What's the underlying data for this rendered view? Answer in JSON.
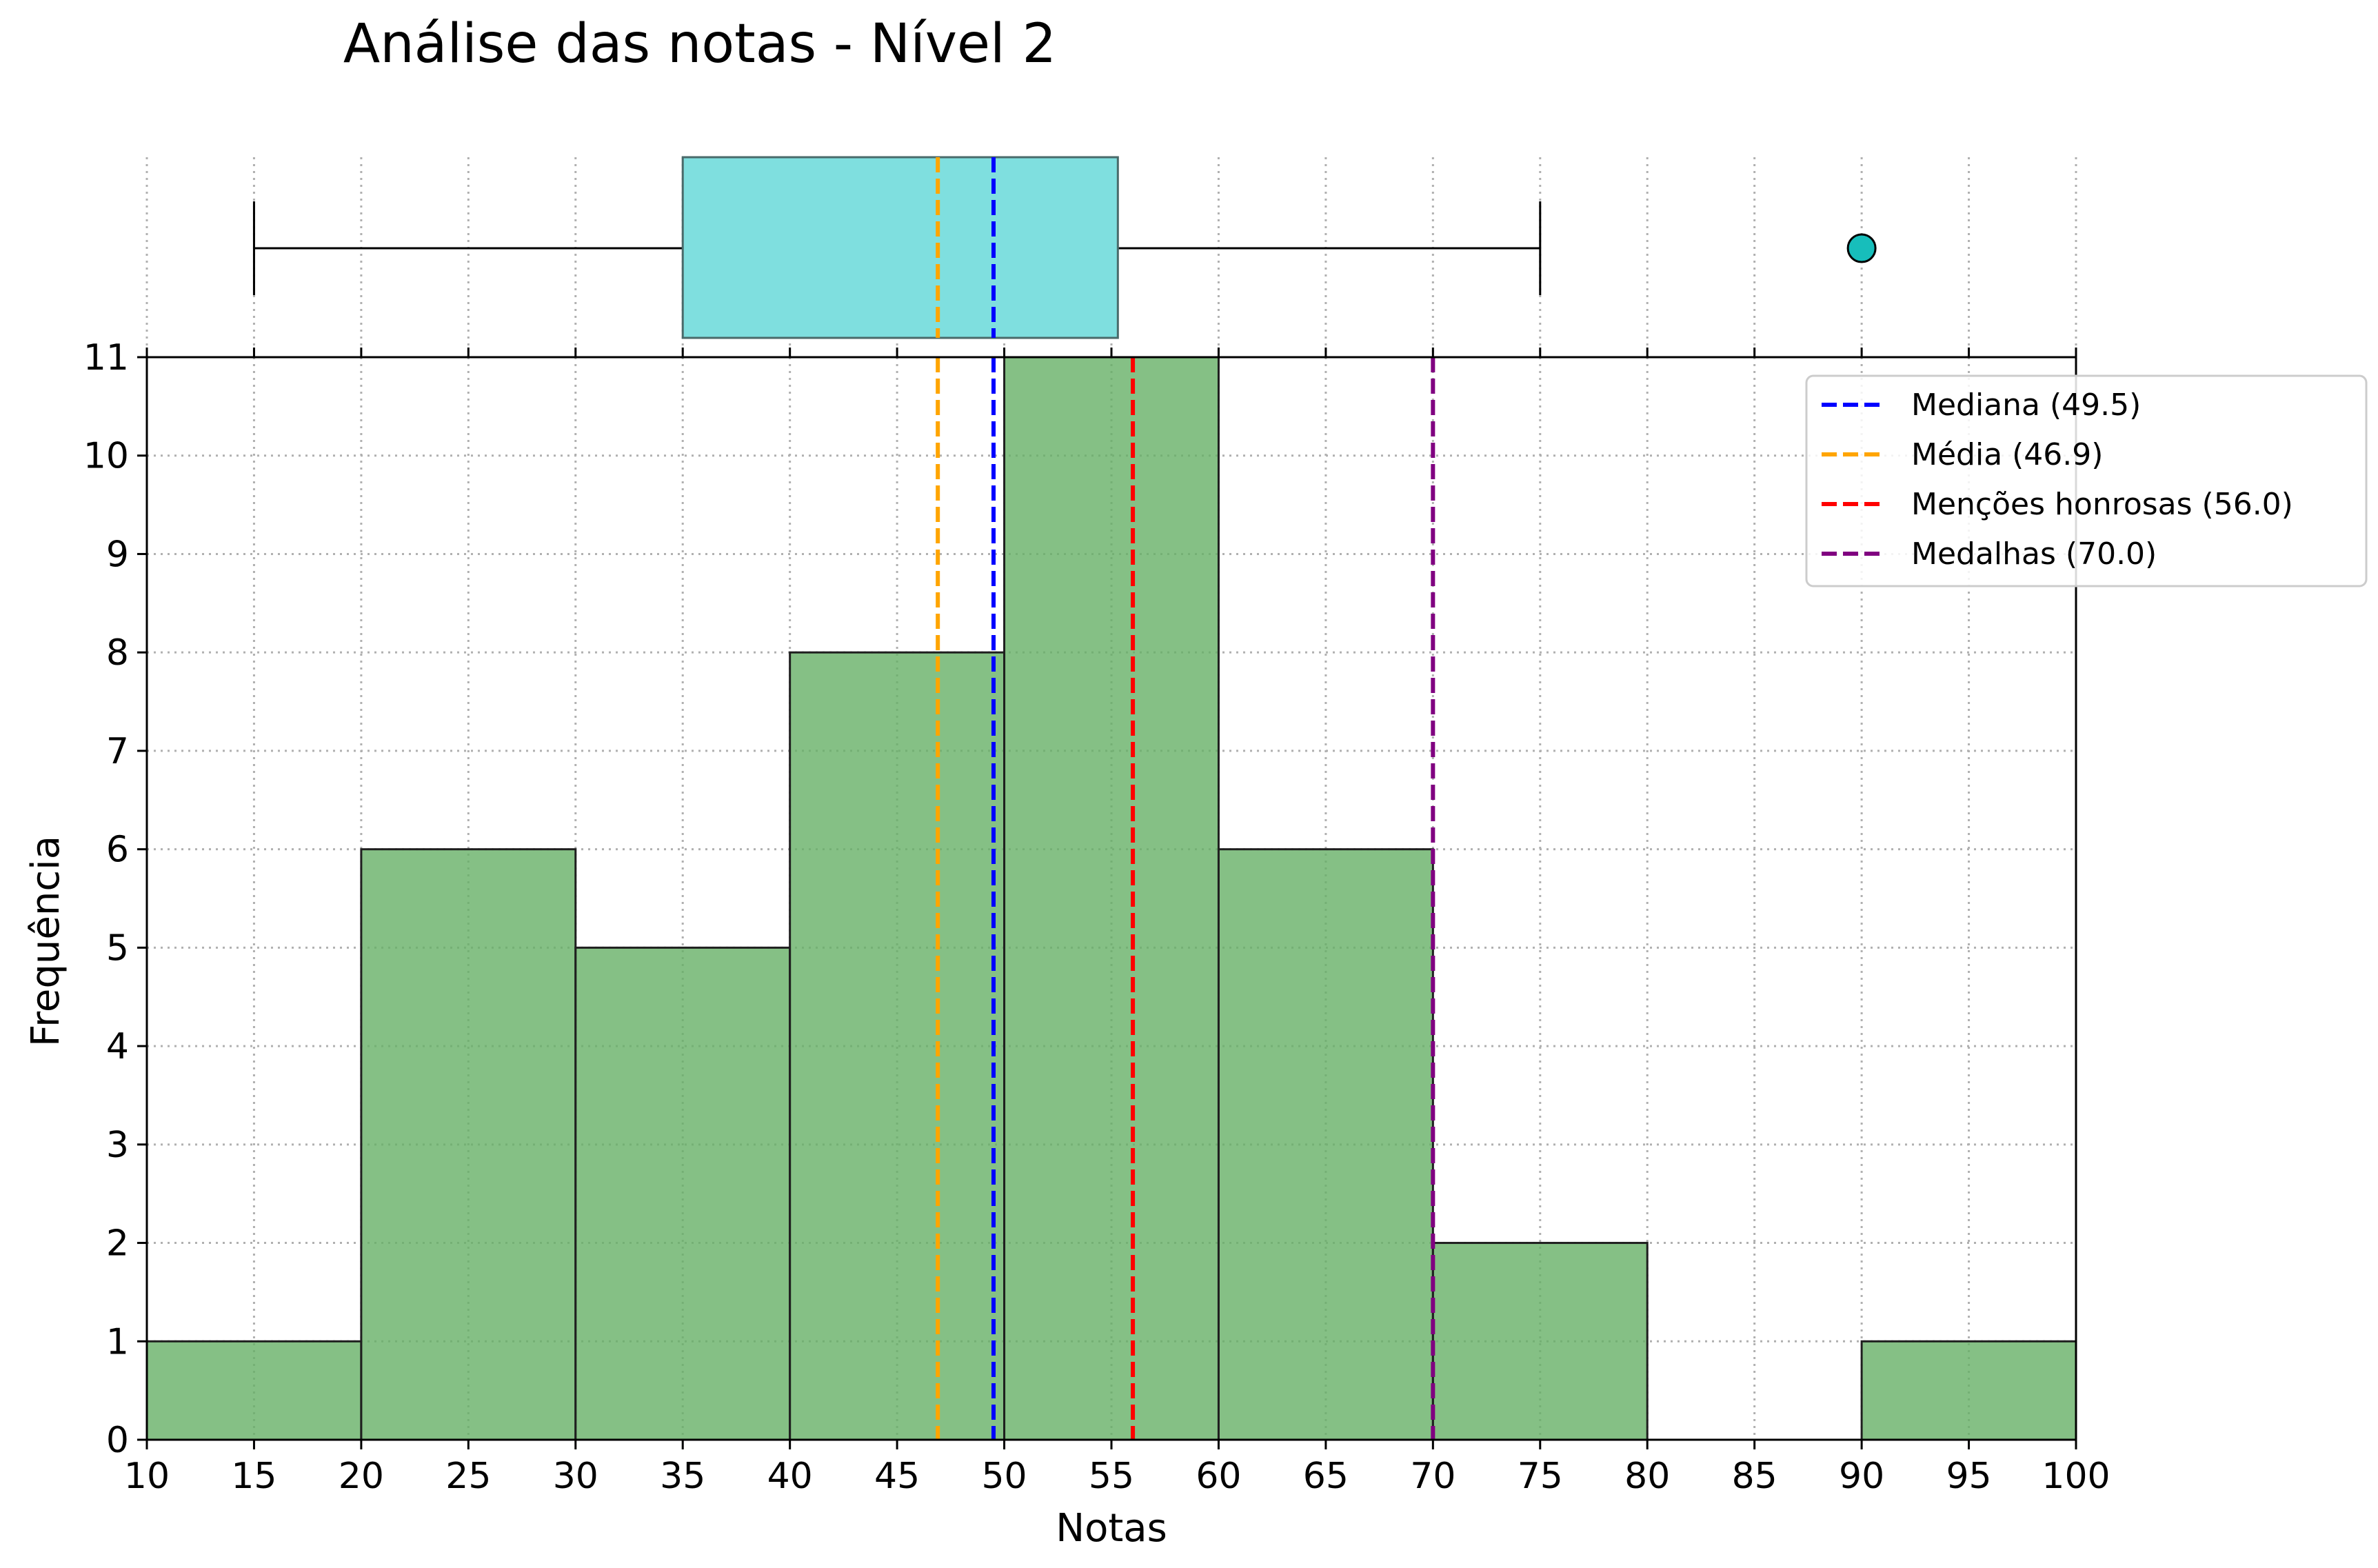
{
  "chart_data": {
    "type": "histogram+boxplot",
    "title": "Análise das notas - Nível 2",
    "xlabel": "Notas",
    "ylabel": "Frequência",
    "xlim": [
      10,
      100
    ],
    "ylim": [
      0,
      11
    ],
    "x_ticks": [
      10,
      15,
      20,
      25,
      30,
      35,
      40,
      45,
      50,
      55,
      60,
      65,
      70,
      75,
      80,
      85,
      90,
      95,
      100
    ],
    "y_ticks": [
      0,
      1,
      2,
      3,
      4,
      5,
      6,
      7,
      8,
      9,
      10,
      11
    ],
    "grid": true,
    "bins": [
      {
        "start": 10,
        "end": 20,
        "count": 1
      },
      {
        "start": 20,
        "end": 30,
        "count": 6
      },
      {
        "start": 30,
        "end": 40,
        "count": 5
      },
      {
        "start": 40,
        "end": 50,
        "count": 8
      },
      {
        "start": 50,
        "end": 60,
        "count": 11
      },
      {
        "start": 60,
        "end": 70,
        "count": 6
      },
      {
        "start": 70,
        "end": 80,
        "count": 2
      },
      {
        "start": 80,
        "end": 90,
        "count": 0
      },
      {
        "start": 90,
        "end": 100,
        "count": 1
      }
    ],
    "bar_color": "#66b066",
    "boxplot": {
      "whisker_low": 15,
      "q1": 35,
      "median": 49.5,
      "q3": 55.3,
      "whisker_high": 75,
      "outliers": [
        90
      ],
      "box_color": "#7fdfdf",
      "outlier_color": "#17bebb"
    },
    "reference_lines": [
      {
        "label": "Mediana (49.5)",
        "x": 49.5,
        "color": "#0000ff"
      },
      {
        "label": "Média (46.9)",
        "x": 46.9,
        "color": "#ffa500"
      },
      {
        "label": "Menções honrosas (56.0)",
        "x": 56.0,
        "color": "#ff0000"
      },
      {
        "label": "Medalhas (70.0)",
        "x": 70.0,
        "color": "#800080"
      }
    ],
    "legend_position": "top-right"
  }
}
